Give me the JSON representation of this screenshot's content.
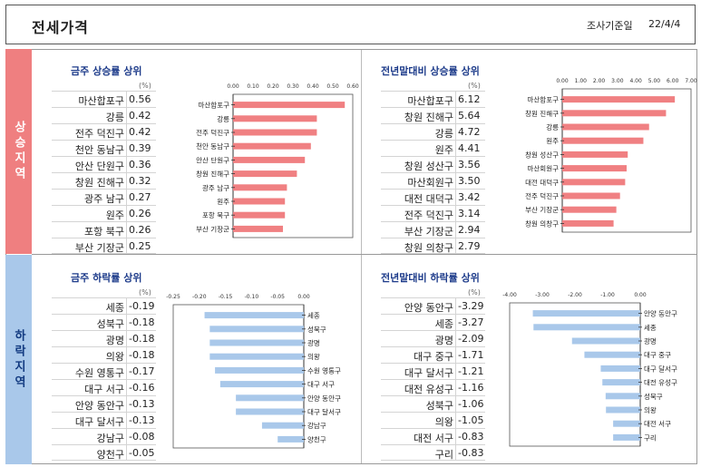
{
  "header": {
    "title": "전세가격",
    "date_label": "조사기준일",
    "date_value": "22/4/4"
  },
  "sections": {
    "up_label": "상승지역",
    "down_label": "하락지역"
  },
  "chart_data": [
    {
      "type": "bar",
      "orientation": "horizontal",
      "title": "금주 상승률 상위",
      "unit": "(%)",
      "categories": [
        "마산합포구",
        "강릉",
        "전주 덕진구",
        "천안 동남구",
        "안산 단원구",
        "창원 진해구",
        "광주 남구",
        "원주",
        "포항 북구",
        "부산 기장군"
      ],
      "labels": [
        "마산합포구",
        "강릉",
        "전주 덕진구",
        "천안 동남구",
        "안산 단원구",
        "창원 진해구",
        "광주 남구",
        "원주",
        "포항 북구",
        "부산 기장군"
      ],
      "values": [
        0.56,
        0.42,
        0.42,
        0.39,
        0.36,
        0.32,
        0.27,
        0.26,
        0.26,
        0.25
      ],
      "display": [
        "0.56",
        "0.42",
        "0.42",
        "0.39",
        "0.36",
        "0.32",
        "0.27",
        "0.26",
        "0.26",
        "0.25"
      ],
      "xlim": [
        0,
        0.6
      ],
      "ticks": [
        0,
        0.1,
        0.2,
        0.3,
        0.4,
        0.5,
        0.6
      ],
      "tick_labels": [
        "0.00",
        "0.10",
        "0.20",
        "0.30",
        "0.40",
        "0.50",
        "0.60"
      ],
      "color": "#f08082"
    },
    {
      "type": "bar",
      "orientation": "horizontal",
      "title": "전년말대비 상승률 상위",
      "unit": "(%)",
      "categories": [
        "마산합포구",
        "창원 진해구",
        "강릉",
        "원주",
        "창원 성산구",
        "마산회원구",
        "대전 대덕구",
        "전주 덕진구",
        "부산 기장군",
        "창원 의창구"
      ],
      "labels": [
        "마산합포구",
        "창원 진해구",
        "강릉",
        "원주",
        "창원 성산구",
        "마산회원구",
        "대전 대덕구",
        "전주 덕진구",
        "부산 기장군",
        "창원 의창구"
      ],
      "values": [
        6.12,
        5.64,
        4.72,
        4.41,
        3.56,
        3.5,
        3.42,
        3.14,
        2.94,
        2.79
      ],
      "display": [
        "6.12",
        "5.64",
        "4.72",
        "4.41",
        "3.56",
        "3.50",
        "3.42",
        "3.14",
        "2.94",
        "2.79"
      ],
      "xlim": [
        0,
        7
      ],
      "ticks": [
        0,
        1,
        2,
        3,
        4,
        5,
        6,
        7
      ],
      "tick_labels": [
        "0.00",
        "1.00",
        "2.00",
        "3.00",
        "4.00",
        "5.00",
        "6.00",
        "7.00"
      ],
      "color": "#f08082"
    },
    {
      "type": "bar",
      "orientation": "horizontal",
      "title": "금주 하락률 상위",
      "unit": "(%)",
      "categories": [
        "세종",
        "성북구",
        "광명",
        "의왕",
        "수원 영통구",
        "대구 서구",
        "안양 동안구",
        "대구 달서구",
        "강남구",
        "양천구"
      ],
      "labels": [
        "세종",
        "성북구",
        "광명",
        "의왕",
        "수원 영통구",
        "대구 서구",
        "안양 동안구",
        "대구 달서구",
        "강남구",
        "양천구"
      ],
      "values": [
        -0.19,
        -0.18,
        -0.18,
        -0.18,
        -0.17,
        -0.16,
        -0.13,
        -0.13,
        -0.08,
        -0.05
      ],
      "display": [
        "-0.19",
        "-0.18",
        "-0.18",
        "-0.18",
        "-0.17",
        "-0.16",
        "-0.13",
        "-0.13",
        "-0.08",
        "-0.05"
      ],
      "xlim": [
        -0.25,
        0
      ],
      "ticks": [
        -0.25,
        -0.2,
        -0.15,
        -0.1,
        -0.05,
        0
      ],
      "tick_labels": [
        "-0.25",
        "-0.20",
        "-0.15",
        "-0.10",
        "-0.05",
        "0.00"
      ],
      "color": "#a9c8ea"
    },
    {
      "type": "bar",
      "orientation": "horizontal",
      "title": "전년말대비 하락률 상위",
      "unit": "(%)",
      "categories": [
        "안양 동안구",
        "세종",
        "광명",
        "대구 중구",
        "대구 달서구",
        "대전 유성구",
        "성북구",
        "의왕",
        "대전 서구",
        "구리"
      ],
      "labels": [
        "안양 동안구",
        "세종",
        "광명",
        "대구 중구",
        "대구 달서구",
        "대전 유성구",
        "성북구",
        "의왕",
        "대전 서구",
        "구리"
      ],
      "values": [
        -3.29,
        -3.27,
        -2.09,
        -1.71,
        -1.21,
        -1.16,
        -1.06,
        -1.05,
        -0.83,
        -0.83
      ],
      "display": [
        "-3.29",
        "-3.27",
        "-2.09",
        "-1.71",
        "-1.21",
        "-1.16",
        "-1.06",
        "-1.05",
        "-0.83",
        "-0.83"
      ],
      "xlim": [
        -4,
        0
      ],
      "ticks": [
        -4,
        -3,
        -2,
        -1,
        0
      ],
      "tick_labels": [
        "-4.00",
        "-3.00",
        "-2.00",
        "-1.00",
        "0.00"
      ],
      "color": "#a9c8ea"
    }
  ]
}
